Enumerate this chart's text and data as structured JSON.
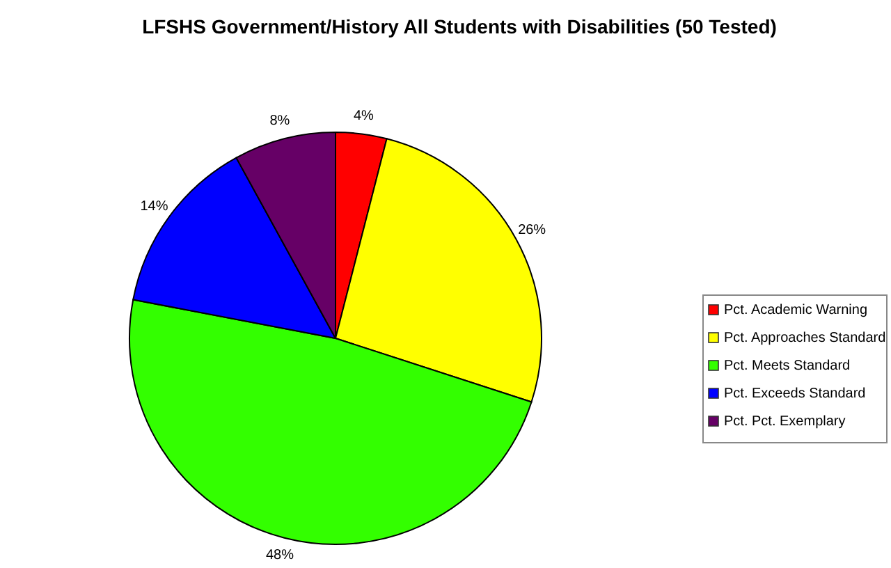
{
  "chart_data": {
    "type": "pie",
    "title": "LFSHS Government/History All Students with Disabilities (50 Tested)",
    "categories": [
      "Pct. Academic Warning",
      "Pct. Approaches Standard",
      "Pct. Meets Standard",
      "Pct. Exceeds Standard",
      "Pct. Pct. Exemplary"
    ],
    "values": [
      4,
      26,
      48,
      14,
      8
    ],
    "colors": [
      "#ff0000",
      "#ffff00",
      "#33ff00",
      "#0000ff",
      "#660066"
    ],
    "value_labels": [
      "4%",
      "26%",
      "48%",
      "14%",
      "8%"
    ],
    "legend": "right"
  }
}
